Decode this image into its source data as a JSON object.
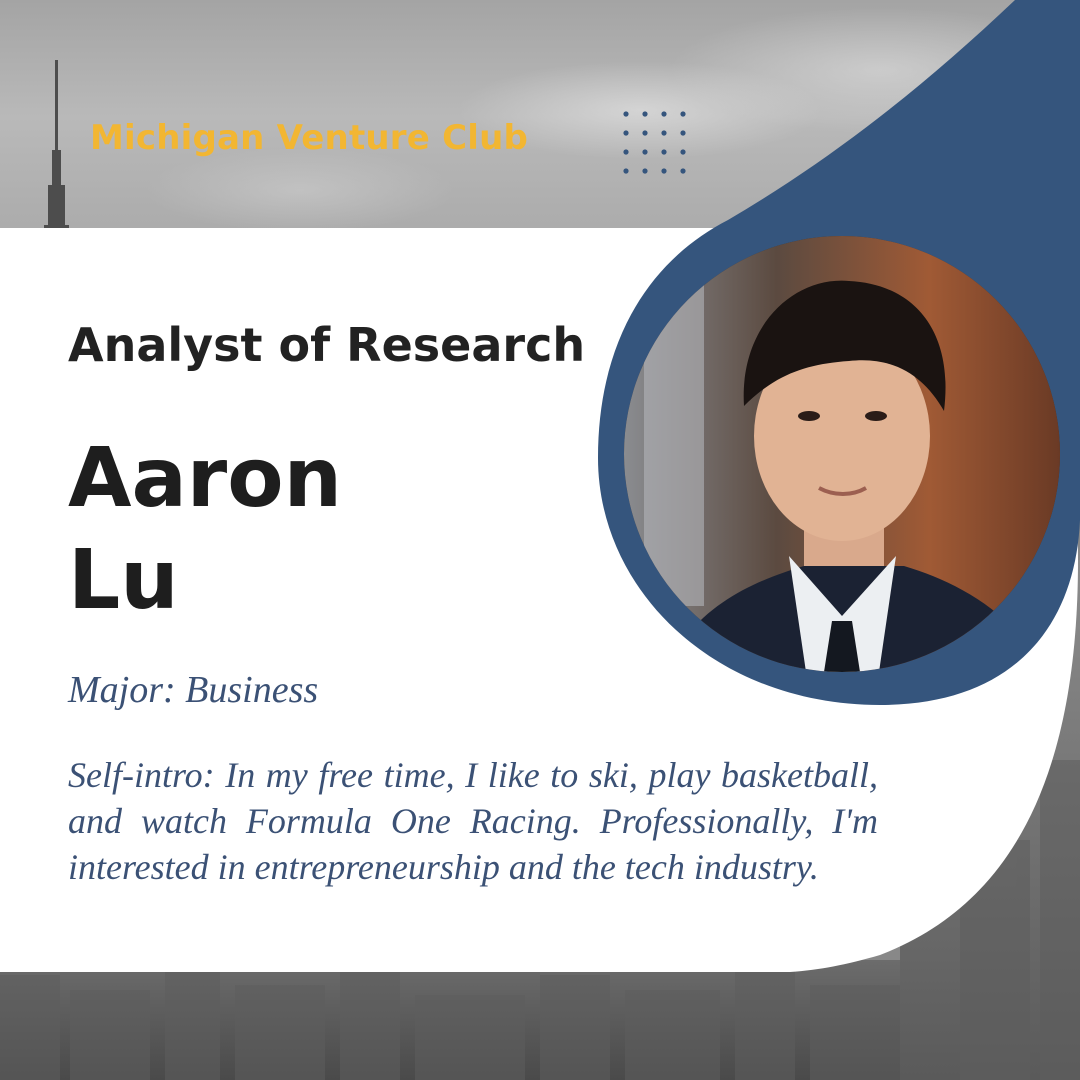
{
  "header": {
    "brand": "Michigan Venture Club"
  },
  "profile": {
    "role": "Analyst of Research",
    "first_name": "Aaron",
    "last_name": "Lu",
    "major": "Major: Business",
    "intro": "Self-intro: In my free time, I like to ski, play basketball, and watch Formula One Racing. Professionally, I'm interested in entrepreneurship and the tech industry."
  },
  "colors": {
    "accent_navy": "#35557d",
    "brand_gold": "#f2b632",
    "text_blue": "#3b5175"
  }
}
